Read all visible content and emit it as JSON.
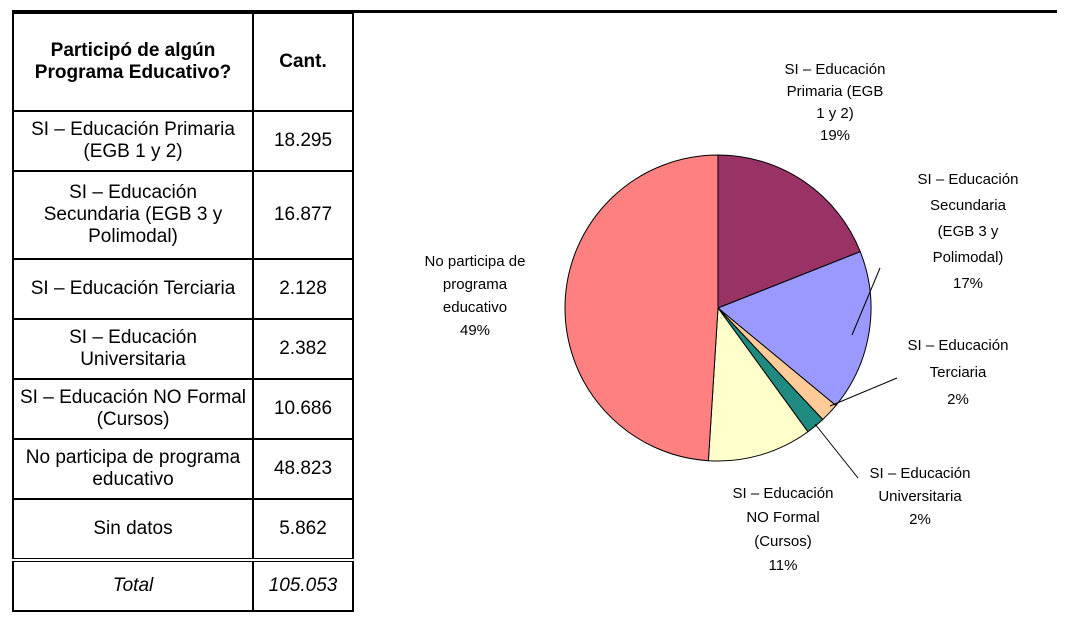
{
  "table": {
    "header": [
      "Participó de algún Programa Educativo?",
      "Cant."
    ],
    "rows": [
      [
        "SI – Educación Primaria (EGB 1 y 2)",
        "18.295"
      ],
      [
        "SI – Educación Secundaria (EGB 3 y Polimodal)",
        "16.877"
      ],
      [
        "SI – Educación Terciaria",
        "2.128"
      ],
      [
        "SI – Educación Universitaria",
        "2.382"
      ],
      [
        "SI – Educación NO Formal (Cursos)",
        "10.686"
      ],
      [
        "No participa de programa educativo",
        "48.823"
      ],
      [
        "Sin datos",
        "5.862"
      ]
    ],
    "total": [
      "Total",
      "105.053"
    ]
  },
  "chart_data": {
    "type": "pie",
    "categories": [
      [
        "SI – Educación",
        "Primaria (EGB",
        "1 y 2)"
      ],
      [
        "SI – Educación",
        "Secundaria",
        "(EGB 3 y",
        "Polimodal)"
      ],
      [
        "SI – Educación",
        "Terciaria"
      ],
      [
        "SI – Educación",
        "Universitaria"
      ],
      [
        "SI – Educación",
        "NO Formal",
        "(Cursos)"
      ],
      [
        "No participa de",
        "programa",
        "educativo"
      ]
    ],
    "values": [
      19,
      17,
      2,
      2,
      11,
      49
    ],
    "value_labels": [
      "19%",
      "17%",
      "2%",
      "2%",
      "11%",
      "49%"
    ],
    "colors": [
      "#993366",
      "#9999ff",
      "#ffcc99",
      "#1f8a80",
      "#ffffcc",
      "#ff8080"
    ]
  }
}
